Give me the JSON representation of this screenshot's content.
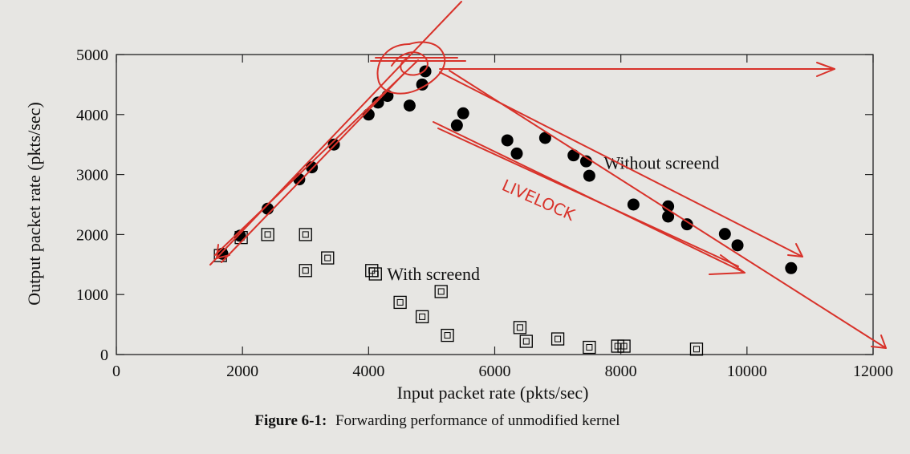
{
  "chart_data": {
    "type": "scatter",
    "title": "",
    "xlabel": "Input packet rate (pkts/sec)",
    "ylabel": "Output packet rate (pkts/sec)",
    "xlim": [
      0,
      12000
    ],
    "ylim": [
      0,
      5000
    ],
    "xticks": [
      0,
      2000,
      4000,
      6000,
      8000,
      10000,
      12000
    ],
    "yticks": [
      0,
      1000,
      2000,
      3000,
      4000,
      5000
    ],
    "grid": false,
    "series": [
      {
        "name": "Without screend",
        "marker": "filled-circle",
        "x": [
          1680,
          1960,
          2400,
          2900,
          3100,
          3450,
          4000,
          4150,
          4300,
          4650,
          4850,
          4900,
          5400,
          5500,
          6200,
          6350,
          6800,
          7250,
          7450,
          7500,
          8200,
          8750,
          8750,
          9050,
          9650,
          9850,
          10700
        ],
        "y": [
          1680,
          1980,
          2430,
          2920,
          3120,
          3500,
          4000,
          4200,
          4310,
          4150,
          4500,
          4720,
          3820,
          4020,
          3570,
          3350,
          3610,
          3320,
          3220,
          2980,
          2500,
          2470,
          2300,
          2170,
          2010,
          1820,
          1440
        ]
      },
      {
        "name": "With screend",
        "marker": "open-square",
        "x": [
          1650,
          1980,
          2400,
          3000,
          3000,
          3350,
          4050,
          4500,
          4850,
          5150,
          5250,
          6400,
          6500,
          7000,
          7500,
          7950,
          8050,
          9200
        ],
        "y": [
          1650,
          1950,
          2000,
          2000,
          1400,
          1610,
          1400,
          870,
          630,
          1050,
          320,
          450,
          220,
          260,
          120,
          140,
          140,
          90
        ]
      }
    ],
    "series_label_positions": [
      {
        "x": 7450,
        "y": 3200
      },
      {
        "x": 4050,
        "y": 1350
      }
    ],
    "annotations": {
      "handwritten": "LIVELOCK"
    },
    "caption_bold": "Figure 6-1:",
    "caption_text": "Forwarding performance of unmodified kernel",
    "colors": {
      "ink": "#d8322a",
      "marker": "#000000",
      "background": "#e7e6e3"
    }
  }
}
